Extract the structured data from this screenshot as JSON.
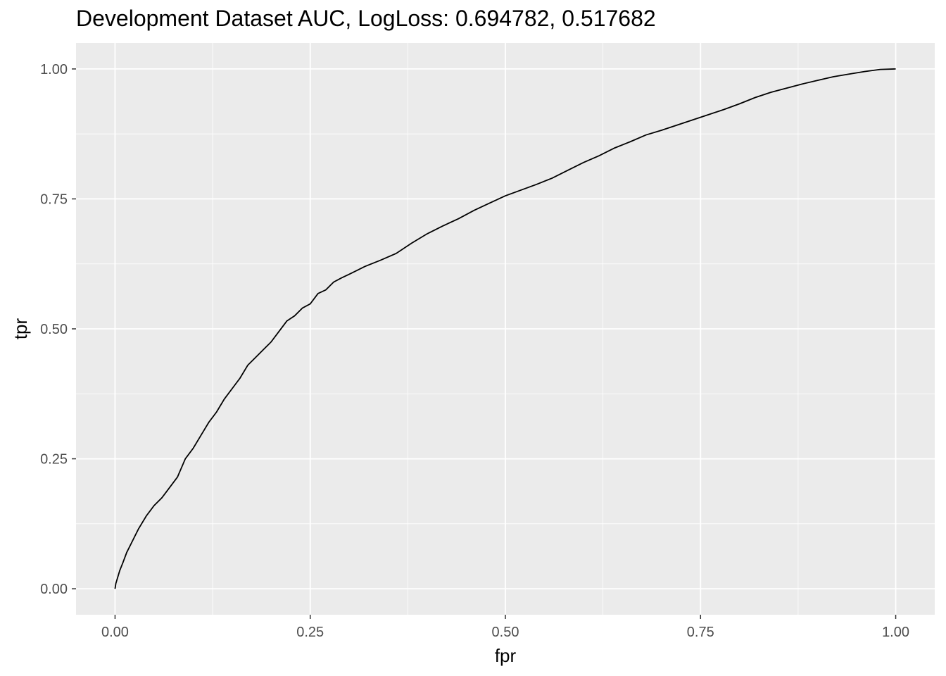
{
  "chart_data": {
    "type": "line",
    "title": "Development Dataset AUC, LogLoss: 0.694782, 0.517682",
    "xlabel": "fpr",
    "ylabel": "tpr",
    "xlim": [
      -0.05,
      1.05
    ],
    "ylim": [
      -0.05,
      1.05
    ],
    "x_ticks": [
      0.0,
      0.25,
      0.5,
      0.75,
      1.0
    ],
    "x_tick_labels": [
      "0.00",
      "0.25",
      "0.50",
      "0.75",
      "1.00"
    ],
    "y_ticks": [
      0.0,
      0.25,
      0.5,
      0.75,
      1.0
    ],
    "y_tick_labels": [
      "0.00",
      "0.25",
      "0.50",
      "0.75",
      "1.00"
    ],
    "grid": true,
    "colors": {
      "panel": "#ebebeb",
      "grid": "#ffffff",
      "line": "#000000"
    },
    "series": [
      {
        "x": [
          0.0,
          0.001,
          0.003,
          0.006,
          0.01,
          0.015,
          0.02,
          0.025,
          0.03,
          0.04,
          0.05,
          0.06,
          0.07,
          0.08,
          0.09,
          0.1,
          0.11,
          0.12,
          0.13,
          0.14,
          0.15,
          0.16,
          0.17,
          0.18,
          0.19,
          0.2,
          0.21,
          0.22,
          0.23,
          0.24,
          0.25,
          0.26,
          0.27,
          0.28,
          0.29,
          0.3,
          0.32,
          0.34,
          0.36,
          0.38,
          0.4,
          0.42,
          0.44,
          0.46,
          0.48,
          0.5,
          0.52,
          0.54,
          0.56,
          0.58,
          0.6,
          0.62,
          0.64,
          0.66,
          0.68,
          0.7,
          0.72,
          0.74,
          0.76,
          0.78,
          0.8,
          0.82,
          0.84,
          0.86,
          0.88,
          0.9,
          0.92,
          0.94,
          0.96,
          0.98,
          1.0
        ],
        "y": [
          0.0,
          0.01,
          0.02,
          0.035,
          0.05,
          0.07,
          0.085,
          0.1,
          0.115,
          0.14,
          0.16,
          0.175,
          0.195,
          0.215,
          0.25,
          0.27,
          0.295,
          0.32,
          0.34,
          0.365,
          0.385,
          0.405,
          0.43,
          0.445,
          0.46,
          0.475,
          0.495,
          0.515,
          0.525,
          0.54,
          0.548,
          0.568,
          0.575,
          0.59,
          0.598,
          0.605,
          0.62,
          0.632,
          0.645,
          0.665,
          0.683,
          0.698,
          0.712,
          0.728,
          0.742,
          0.756,
          0.767,
          0.778,
          0.79,
          0.805,
          0.82,
          0.833,
          0.848,
          0.86,
          0.873,
          0.882,
          0.892,
          0.902,
          0.912,
          0.922,
          0.933,
          0.945,
          0.955,
          0.963,
          0.971,
          0.978,
          0.985,
          0.99,
          0.995,
          0.999,
          1.0
        ]
      }
    ]
  }
}
